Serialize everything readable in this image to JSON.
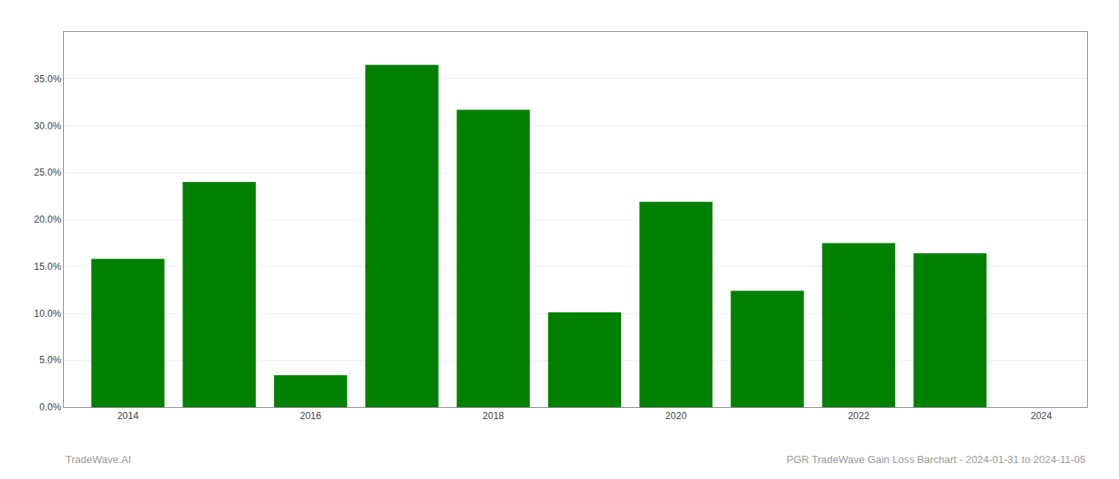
{
  "chart_data": {
    "type": "bar",
    "x": [
      2014,
      2015,
      2016,
      2017,
      2018,
      2019,
      2020,
      2021,
      2022,
      2023
    ],
    "values": [
      0.158,
      0.24,
      0.034,
      0.365,
      0.317,
      0.101,
      0.219,
      0.124,
      0.175,
      0.164
    ],
    "color": "#008000",
    "xlim": [
      2013.3,
      2024.5
    ],
    "xticks": [
      2014,
      2016,
      2018,
      2020,
      2022,
      2024
    ],
    "ylim": [
      0,
      0.4
    ],
    "yticks": [
      {
        "value": 0.0,
        "label": "0.0%"
      },
      {
        "value": 0.05,
        "label": "5.0%"
      },
      {
        "value": 0.1,
        "label": "10.0%"
      },
      {
        "value": 0.15,
        "label": "15.0%"
      },
      {
        "value": 0.2,
        "label": "20.0%"
      },
      {
        "value": 0.25,
        "label": "25.0%"
      },
      {
        "value": 0.3,
        "label": "30.0%"
      },
      {
        "value": 0.35,
        "label": "35.0%"
      }
    ],
    "grid": "y",
    "annotations": [
      "TradeWave.AI",
      "PGR TradeWave Gain Loss Barchart - 2024-01-31 to 2024-11-05"
    ]
  }
}
